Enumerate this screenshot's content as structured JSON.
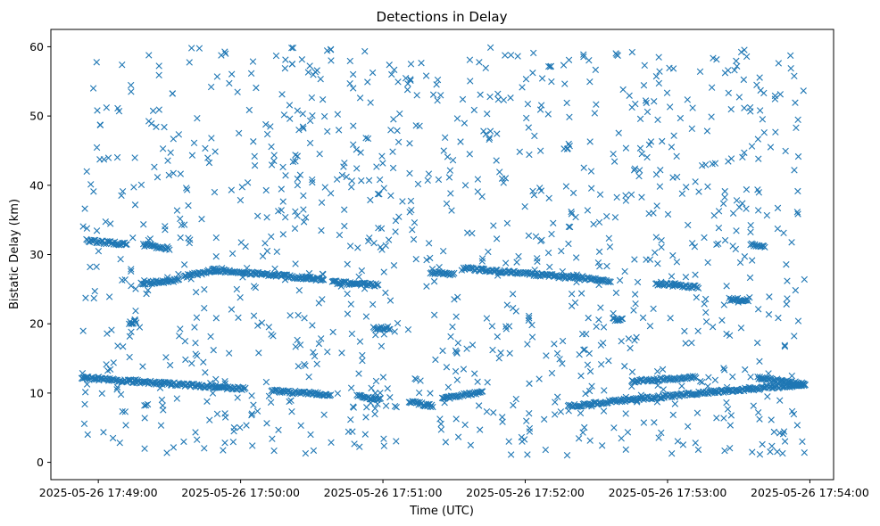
{
  "chart_data": {
    "type": "scatter",
    "title": "Detections in Delay",
    "xlabel": "Time (UTC)",
    "ylabel": "Bistatic Delay (km)",
    "marker": "x",
    "color": "#1f77b4",
    "grid": false,
    "xlim": [
      "2025-05-26 17:48:40",
      "2025-05-26 17:54:10"
    ],
    "ylim": [
      -2.5,
      62.5
    ],
    "xticks": [
      "2025-05-26 17:49:00",
      "2025-05-26 17:50:00",
      "2025-05-26 17:51:00",
      "2025-05-26 17:52:00",
      "2025-05-26 17:53:00",
      "2025-05-26 17:54:00"
    ],
    "yticks": [
      0,
      10,
      20,
      30,
      40,
      50,
      60
    ],
    "tracks": [
      {
        "x_start": "2025-05-26 17:48:53",
        "y_start": 12.2,
        "x_end": "2025-05-26 17:50:02",
        "y_end": 10.6
      },
      {
        "x_start": "2025-05-26 17:50:13",
        "y_start": 10.3,
        "x_end": "2025-05-26 17:50:38",
        "y_end": 9.8
      },
      {
        "x_start": "2025-05-26 17:50:49",
        "y_start": 9.5,
        "x_end": "2025-05-26 17:50:59",
        "y_end": 9.2
      },
      {
        "x_start": "2025-05-26 17:51:11",
        "y_start": 8.8,
        "x_end": "2025-05-26 17:51:21",
        "y_end": 8.1
      },
      {
        "x_start": "2025-05-26 17:51:25",
        "y_start": 9.2,
        "x_end": "2025-05-26 17:51:42",
        "y_end": 10.2
      },
      {
        "x_start": "2025-05-26 17:52:18",
        "y_start": 8.2,
        "x_end": "2025-05-26 17:52:28",
        "y_end": 8.3
      },
      {
        "x_start": "2025-05-26 17:52:28",
        "y_start": 8.5,
        "x_end": "2025-05-26 17:53:20",
        "y_end": 10.2
      },
      {
        "x_start": "2025-05-26 17:53:20",
        "y_start": 10.2,
        "x_end": "2025-05-26 17:53:58",
        "y_end": 11.2
      },
      {
        "x_start": "2025-05-26 17:52:45",
        "y_start": 11.7,
        "x_end": "2025-05-26 17:53:12",
        "y_end": 12.3
      },
      {
        "x_start": "2025-05-26 17:53:38",
        "y_start": 12.2,
        "x_end": "2025-05-26 17:53:58",
        "y_end": 11.3
      },
      {
        "x_start": "2025-05-26 17:48:55",
        "y_start": 32.0,
        "x_end": "2025-05-26 17:49:12",
        "y_end": 31.5
      },
      {
        "x_start": "2025-05-26 17:49:19",
        "y_start": 31.4,
        "x_end": "2025-05-26 17:49:30",
        "y_end": 30.9
      },
      {
        "x_start": "2025-05-26 17:49:18",
        "y_start": 25.8,
        "x_end": "2025-05-26 17:49:34",
        "y_end": 26.3
      },
      {
        "x_start": "2025-05-26 17:49:36",
        "y_start": 26.8,
        "x_end": "2025-05-26 17:49:50",
        "y_end": 27.8
      },
      {
        "x_start": "2025-05-26 17:49:48",
        "y_start": 27.8,
        "x_end": "2025-05-26 17:50:35",
        "y_end": 26.4
      },
      {
        "x_start": "2025-05-26 17:50:39",
        "y_start": 26.0,
        "x_end": "2025-05-26 17:50:58",
        "y_end": 25.6
      },
      {
        "x_start": "2025-05-26 17:51:20",
        "y_start": 27.4,
        "x_end": "2025-05-26 17:51:30",
        "y_end": 27.2
      },
      {
        "x_start": "2025-05-26 17:51:34",
        "y_start": 28.0,
        "x_end": "2025-05-26 17:52:36",
        "y_end": 26.2
      },
      {
        "x_start": "2025-05-26 17:52:55",
        "y_start": 25.8,
        "x_end": "2025-05-26 17:53:13",
        "y_end": 25.3
      },
      {
        "x_start": "2025-05-26 17:53:35",
        "y_start": 31.4,
        "x_end": "2025-05-26 17:53:41",
        "y_end": 31.1
      },
      {
        "x_start": "2025-05-26 17:53:26",
        "y_start": 23.5,
        "x_end": "2025-05-26 17:53:34",
        "y_end": 23.5
      },
      {
        "x_start": "2025-05-26 17:49:13",
        "y_start": 20.1,
        "x_end": "2025-05-26 17:49:16",
        "y_end": 20.3
      },
      {
        "x_start": "2025-05-26 17:50:56",
        "y_start": 19.3,
        "x_end": "2025-05-26 17:51:03",
        "y_end": 19.4
      },
      {
        "x_start": "2025-05-26 17:52:37",
        "y_start": 20.6,
        "x_end": "2025-05-26 17:52:41",
        "y_end": 20.6
      }
    ]
  }
}
